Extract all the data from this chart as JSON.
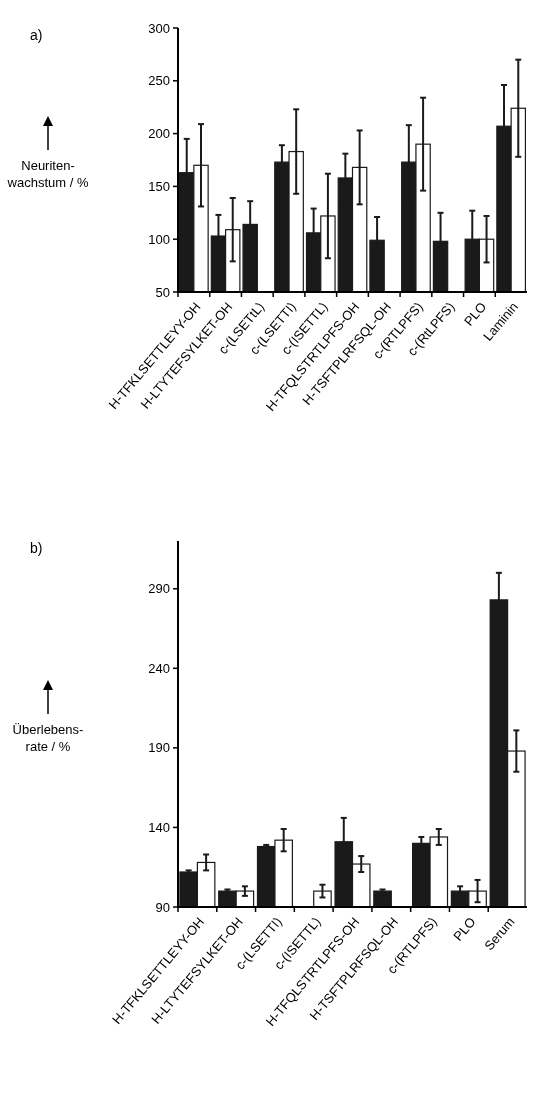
{
  "chart_data": [
    {
      "type": "bar",
      "ylabel": "Neuriten-\nwachstum / %",
      "annotations": [
        "a)"
      ],
      "categories": [
        "H-TFKLSETTLEYY-OH",
        "H-LTYTEFSYLKET-OH",
        "c-(LSETtL)",
        "c-(LSETTI)",
        "c-(ISETTL)",
        "H-TFQLSTRTLPFS-OH",
        "H-TSFTPLRFSQL-OH",
        "c-(RTLPFS)",
        "c-(RtLPFS)",
        "PLO",
        "Laminin"
      ],
      "series": [
        {
          "color": "#1a1a1a",
          "values": [
            163,
            103,
            114,
            173,
            106,
            158,
            99,
            173,
            98,
            100,
            207
          ],
          "errors": [
            32,
            20,
            22,
            16,
            23,
            23,
            22,
            35,
            27,
            27,
            39
          ]
        },
        {
          "color": "#ffffff",
          "values": [
            170,
            109,
            null,
            183,
            122,
            168,
            null,
            190,
            null,
            100,
            224
          ],
          "errors": [
            39,
            30,
            null,
            40,
            40,
            35,
            null,
            44,
            null,
            22,
            46
          ]
        }
      ],
      "ylim": [
        50,
        300
      ],
      "yticks": [
        50,
        100,
        150,
        200,
        250,
        300
      ]
    },
    {
      "type": "bar",
      "ylabel": "Überlebens-\nrate / %",
      "annotations": [
        "b)"
      ],
      "categories": [
        "H-TFKLSETTLEYY-OH",
        "H-LTYTEFSYLKET-OH",
        "c-(LSETTI)",
        "c-(ISETTL)",
        "H-TFQLSTRTLPFS-OH",
        "H-TSFTPLRFSQL-OH",
        "c-(RTLPFS)",
        "PLO",
        "Serum"
      ],
      "series": [
        {
          "color": "#1a1a1a",
          "values": [
            112,
            100,
            128,
            null,
            131,
            100,
            130,
            100,
            283
          ],
          "errors": [
            1,
            1,
            1,
            null,
            15,
            1,
            4,
            3,
            17
          ]
        },
        {
          "color": "#ffffff",
          "values": [
            118,
            100,
            132,
            100,
            117,
            null,
            134,
            100,
            188
          ],
          "errors": [
            5,
            3,
            7,
            4,
            5,
            null,
            5,
            7,
            13
          ]
        }
      ],
      "ylim": [
        90,
        320
      ],
      "yticks": [
        90,
        140,
        190,
        240,
        290
      ]
    }
  ]
}
